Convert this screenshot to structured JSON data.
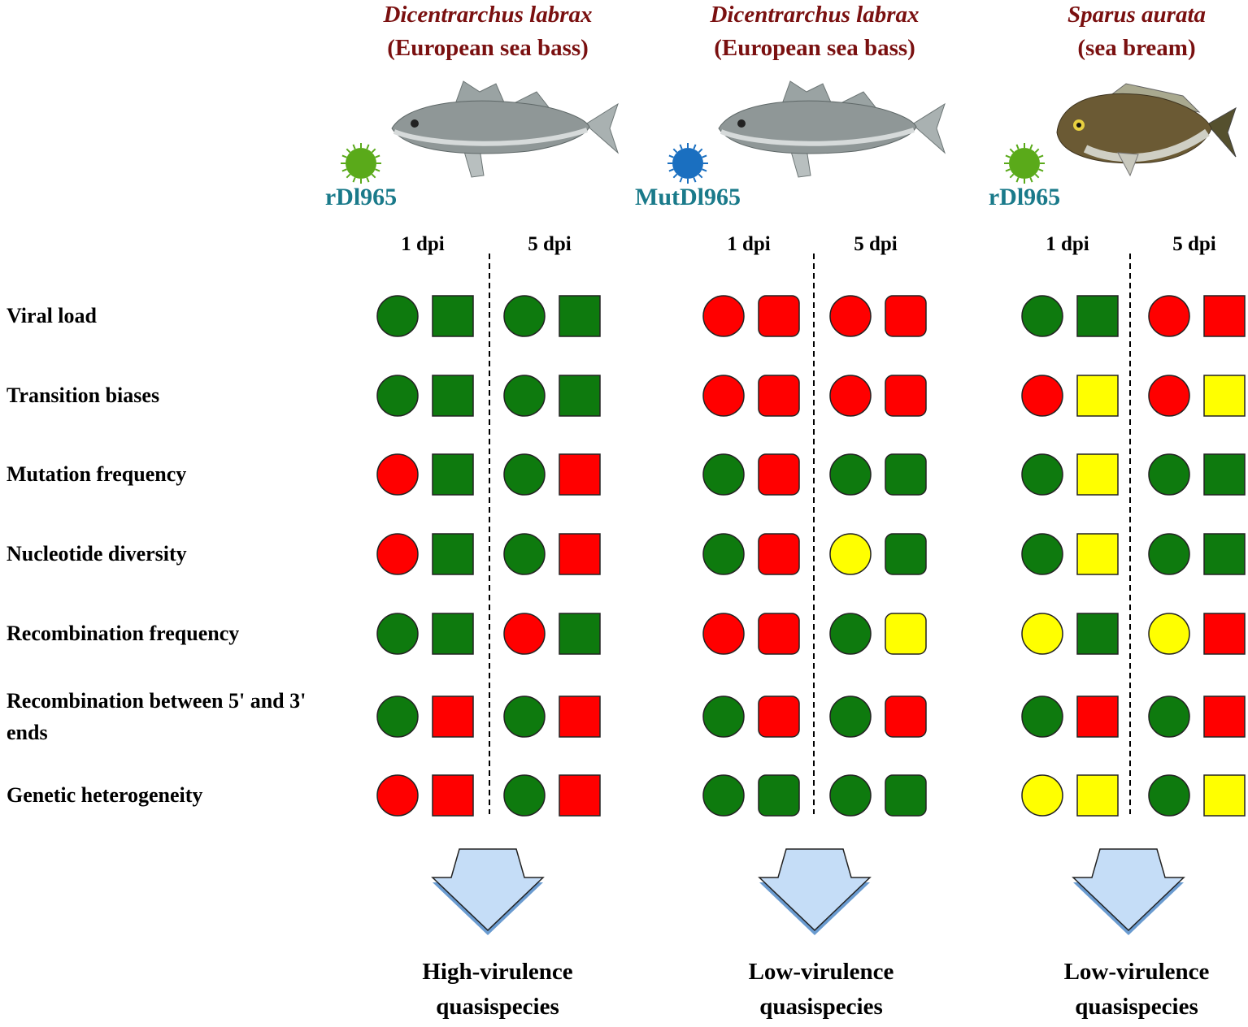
{
  "groups": [
    {
      "species": "Dicentrarchus labrax",
      "common_name": "(European sea bass)",
      "virus": "rDl965",
      "virus_color": "#5aaa1a",
      "fish": "bass",
      "rounded_squares": false,
      "timepoints": [
        "1 dpi",
        "5 dpi"
      ],
      "outcome": [
        "High-virulence",
        "quasispecies"
      ]
    },
    {
      "species": "Dicentrarchus labrax",
      "common_name": "(European sea bass)",
      "virus": "MutDl965",
      "virus_color": "#1a6fc0",
      "fish": "bass",
      "rounded_squares": true,
      "timepoints": [
        "1 dpi",
        "5 dpi"
      ],
      "outcome": [
        "Low-virulence",
        "quasispecies"
      ]
    },
    {
      "species": "Sparus aurata",
      "common_name": "(sea bream)",
      "virus": "rDl965",
      "virus_color": "#5aaa1a",
      "fish": "bream",
      "rounded_squares": false,
      "timepoints": [
        "1 dpi",
        "5 dpi"
      ],
      "outcome": [
        "Low-virulence",
        "quasispecies"
      ]
    }
  ],
  "rows": [
    {
      "label": "Viral load",
      "cells": [
        [
          [
            "#0e7a0e",
            "#0e7a0e"
          ],
          [
            "#0e7a0e",
            "#0e7a0e"
          ]
        ],
        [
          [
            "#ff0000",
            "#ff0000"
          ],
          [
            "#ff0000",
            "#ff0000"
          ]
        ],
        [
          [
            "#0e7a0e",
            "#0e7a0e"
          ],
          [
            "#ff0000",
            "#ff0000"
          ]
        ]
      ]
    },
    {
      "label": "Transition biases",
      "cells": [
        [
          [
            "#0e7a0e",
            "#0e7a0e"
          ],
          [
            "#0e7a0e",
            "#0e7a0e"
          ]
        ],
        [
          [
            "#ff0000",
            "#ff0000"
          ],
          [
            "#ff0000",
            "#ff0000"
          ]
        ],
        [
          [
            "#ff0000",
            "#ffff00"
          ],
          [
            "#ff0000",
            "#ffff00"
          ]
        ]
      ]
    },
    {
      "label": "Mutation frequency",
      "cells": [
        [
          [
            "#ff0000",
            "#0e7a0e"
          ],
          [
            "#0e7a0e",
            "#ff0000"
          ]
        ],
        [
          [
            "#0e7a0e",
            "#ff0000"
          ],
          [
            "#0e7a0e",
            "#0e7a0e"
          ]
        ],
        [
          [
            "#0e7a0e",
            "#ffff00"
          ],
          [
            "#0e7a0e",
            "#0e7a0e"
          ]
        ]
      ]
    },
    {
      "label": "Nucleotide diversity",
      "cells": [
        [
          [
            "#ff0000",
            "#0e7a0e"
          ],
          [
            "#0e7a0e",
            "#ff0000"
          ]
        ],
        [
          [
            "#0e7a0e",
            "#ff0000"
          ],
          [
            "#ffff00",
            "#0e7a0e"
          ]
        ],
        [
          [
            "#0e7a0e",
            "#ffff00"
          ],
          [
            "#0e7a0e",
            "#0e7a0e"
          ]
        ]
      ]
    },
    {
      "label": "Recombination frequency",
      "cells": [
        [
          [
            "#0e7a0e",
            "#0e7a0e"
          ],
          [
            "#ff0000",
            "#0e7a0e"
          ]
        ],
        [
          [
            "#ff0000",
            "#ff0000"
          ],
          [
            "#0e7a0e",
            "#ffff00"
          ]
        ],
        [
          [
            "#ffff00",
            "#0e7a0e"
          ],
          [
            "#ffff00",
            "#ff0000"
          ]
        ]
      ]
    },
    {
      "label": "Recombination between 5' and 3' ends",
      "cells": [
        [
          [
            "#0e7a0e",
            "#ff0000"
          ],
          [
            "#0e7a0e",
            "#ff0000"
          ]
        ],
        [
          [
            "#0e7a0e",
            "#ff0000"
          ],
          [
            "#0e7a0e",
            "#ff0000"
          ]
        ],
        [
          [
            "#0e7a0e",
            "#ff0000"
          ],
          [
            "#0e7a0e",
            "#ff0000"
          ]
        ]
      ]
    },
    {
      "label": "Genetic heterogeneity",
      "cells": [
        [
          [
            "#ff0000",
            "#ff0000"
          ],
          [
            "#0e7a0e",
            "#ff0000"
          ]
        ],
        [
          [
            "#0e7a0e",
            "#0e7a0e"
          ],
          [
            "#0e7a0e",
            "#0e7a0e"
          ]
        ],
        [
          [
            "#ffff00",
            "#ffff00"
          ],
          [
            "#0e7a0e",
            "#ffff00"
          ]
        ]
      ]
    }
  ]
}
